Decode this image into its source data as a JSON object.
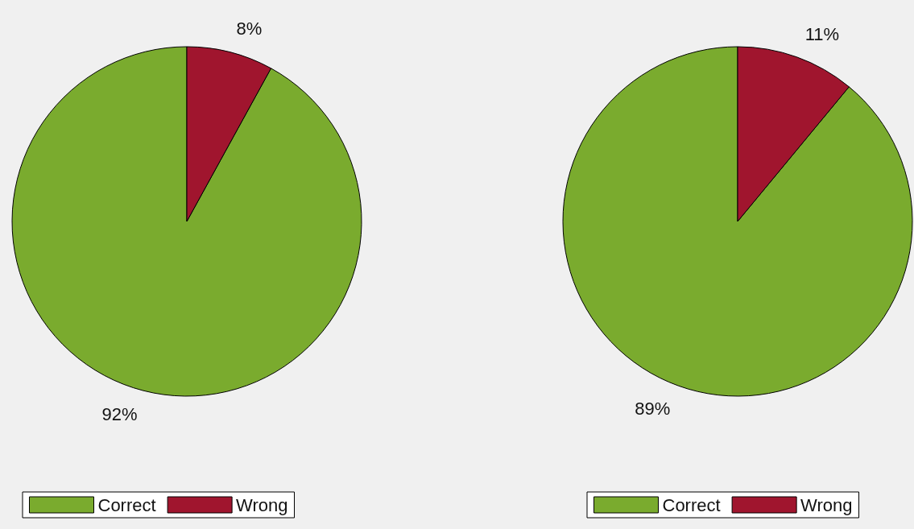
{
  "chart_data": [
    {
      "type": "pie",
      "categories": [
        "Correct",
        "Wrong"
      ],
      "values": [
        92,
        8
      ],
      "colors": [
        "#7aab2e",
        "#a0152e"
      ],
      "value_labels": [
        "92%",
        "8%"
      ],
      "legend": "bottom"
    },
    {
      "type": "pie",
      "categories": [
        "Correct",
        "Wrong"
      ],
      "values": [
        89,
        11
      ],
      "colors": [
        "#7aab2e",
        "#a0152e"
      ],
      "value_labels": [
        "89%",
        "11%"
      ],
      "legend": "bottom"
    }
  ]
}
